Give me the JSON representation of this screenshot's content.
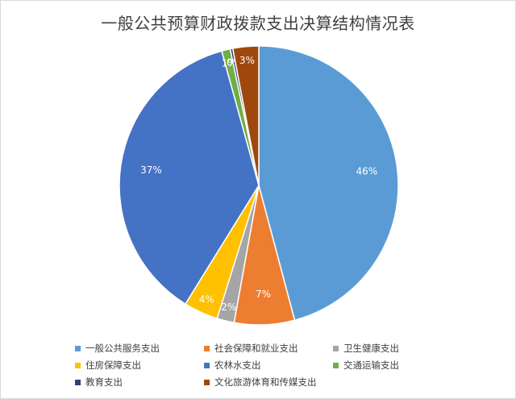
{
  "chart_data": {
    "type": "pie",
    "title": "一般公共预算财政拨款支出决算结构情况表",
    "slices": [
      {
        "name": "一般公共服务支出",
        "value": 46,
        "label": "46%",
        "color": "#5b9bd5"
      },
      {
        "name": "社会保障和就业支出",
        "value": 7,
        "label": "7%",
        "color": "#ed7d31"
      },
      {
        "name": "卫生健康支出",
        "value": 2,
        "label": "2%",
        "color": "#a5a5a5"
      },
      {
        "name": "住房保障支出",
        "value": 4,
        "label": "4%",
        "color": "#ffc000"
      },
      {
        "name": "农林水支出",
        "value": 37,
        "label": "37%",
        "color": "#4472c4"
      },
      {
        "name": "交通运输支出",
        "value": 1,
        "label": "1%",
        "color": "#70ad47"
      },
      {
        "name": "教育支出",
        "value": 0.3,
        "label": "0%",
        "color": "#264478"
      },
      {
        "name": "文化旅游体育和传媒支出",
        "value": 3,
        "label": "3%",
        "color": "#9e480e"
      }
    ],
    "legend_position": "bottom"
  }
}
